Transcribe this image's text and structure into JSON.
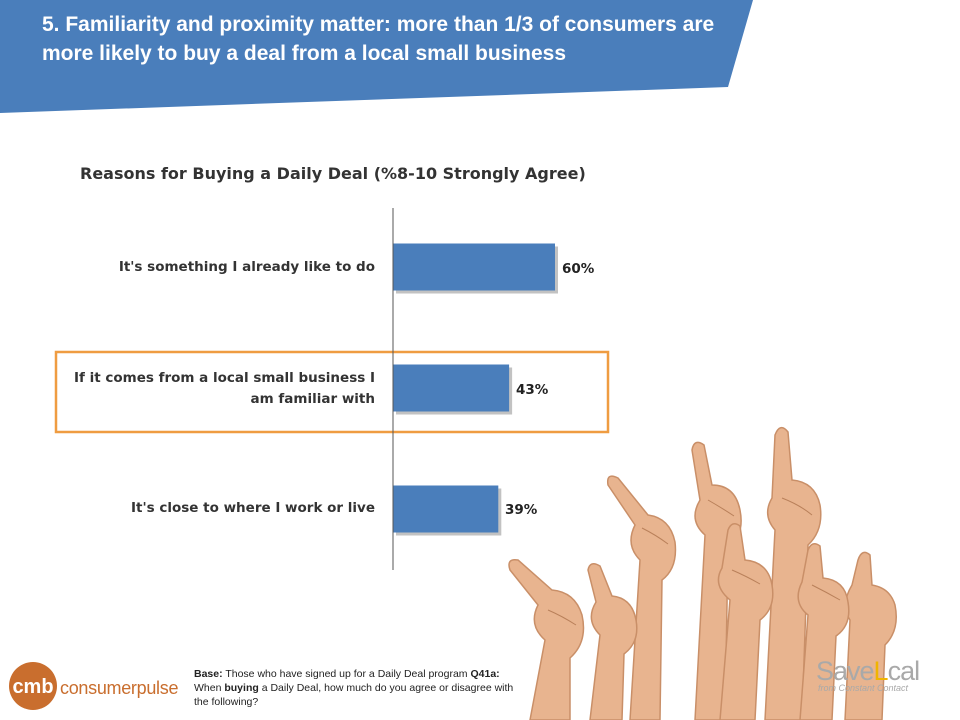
{
  "banner": {
    "title": "5. Familiarity and proximity matter: more than 1/3 of consumers are more likely to buy a deal from a local small business",
    "color": "#4a7ebb"
  },
  "chart_data": {
    "type": "bar",
    "orientation": "horizontal",
    "title": "Reasons for Buying a Daily Deal (%8-10 Strongly Agree)",
    "categories": [
      "It's something I already like to do",
      "If it comes from a local small business I am familiar with",
      "It's close to where I work or live"
    ],
    "values": [
      60,
      43,
      39
    ],
    "value_labels": [
      "60%",
      "43%",
      "39%"
    ],
    "highlighted_category": "If it comes from a local small business I am familiar with",
    "bar_color": "#4a7ebb",
    "highlight_color": "#ef9c41",
    "grid": false,
    "legend": "none"
  },
  "footnote": {
    "base_label": "Base:",
    "base_text": "Those who have signed up for a Daily Deal program",
    "question_label": "Q41a:",
    "question_pre": "When",
    "question_bold": "buying",
    "question_post": "a Daily Deal, how much do you agree or disagree with the following?"
  },
  "logos": {
    "left_mark": "cmb",
    "left_text": "consumerpulse",
    "right_brand_a": "Save",
    "right_brand_b": "L",
    "right_brand_c": "cal",
    "right_sub": "from Constant Contact",
    "left_color": "#c96e2e",
    "right_pin_color": "#f0b400"
  }
}
